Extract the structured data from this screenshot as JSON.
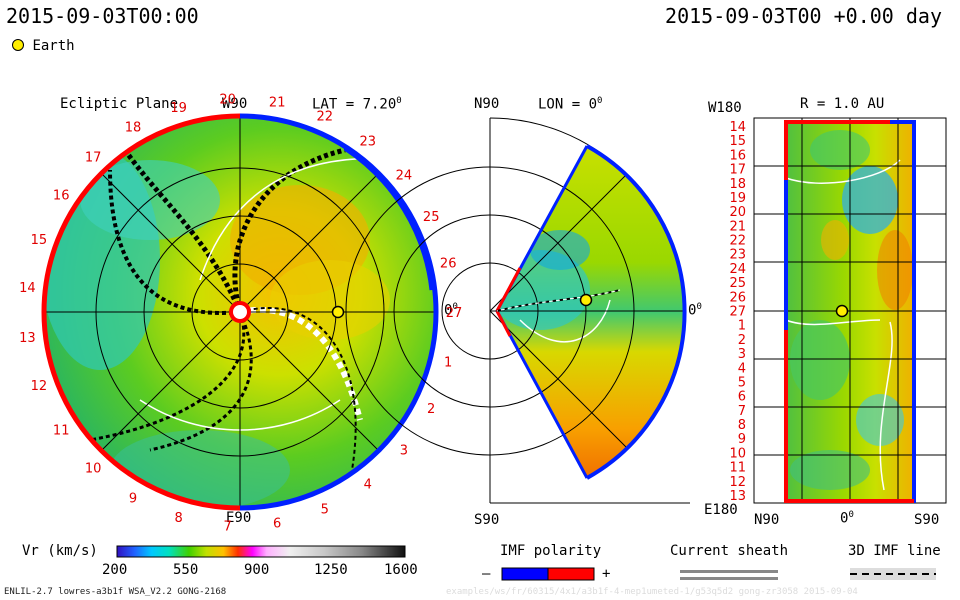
{
  "header": {
    "timestamp_left": "2015-09-03T00:00",
    "timestamp_right": "2015-09-03T00 +0.00 day"
  },
  "earth_legend": {
    "label": "Earth"
  },
  "ecliptic": {
    "title": "Ecliptic Plane",
    "lat_label": "LAT = 7.20",
    "deg": "0",
    "top_label": "W90",
    "bottom_label": "E90",
    "right_label": "0",
    "carrington_labels": [
      "1",
      "2",
      "3",
      "4",
      "5",
      "6",
      "7",
      "8",
      "9",
      "10",
      "11",
      "12",
      "13",
      "14",
      "15",
      "16",
      "17",
      "18",
      "19",
      "20",
      "21",
      "22",
      "23",
      "24",
      "25",
      "26",
      "27"
    ]
  },
  "meridional": {
    "lon_label": "LON = 0",
    "deg": "0",
    "top_label": "N90",
    "bottom_label": "S90",
    "right_label": "0"
  },
  "radial": {
    "title": "R = 1.0 AU",
    "top_left": "W180",
    "bottom_left": "E180",
    "x_labels": [
      "N90",
      "0",
      "S90"
    ],
    "deg": "0",
    "y_labels": [
      "14",
      "15",
      "16",
      "17",
      "18",
      "19",
      "20",
      "21",
      "22",
      "23",
      "24",
      "25",
      "26",
      "27",
      "1",
      "2",
      "3",
      "4",
      "5",
      "6",
      "7",
      "8",
      "9",
      "10",
      "11",
      "12",
      "13"
    ]
  },
  "colorbar": {
    "label": "Vr (km/s)",
    "ticks": [
      "200",
      "550",
      "900",
      "1250",
      "1600"
    ]
  },
  "imf": {
    "title": "IMF polarity",
    "minus": "–",
    "plus": "+"
  },
  "sheath": {
    "title": "Current sheath"
  },
  "imf3d": {
    "title": "3D IMF line"
  },
  "footer": {
    "model": "ENLIL-2.7 lowres-a3b1f WSA_V2.2 GONG-2168",
    "path_faint": "examples/ws/fr/60315/4x1/a3b1f-4-mep1umeted-1/g53q5d2 gong-zr3058   2015-09-04"
  },
  "colors": {
    "positive_polarity": "#ff0000",
    "negative_polarity": "#0000ff",
    "label_red": "#e00000"
  }
}
